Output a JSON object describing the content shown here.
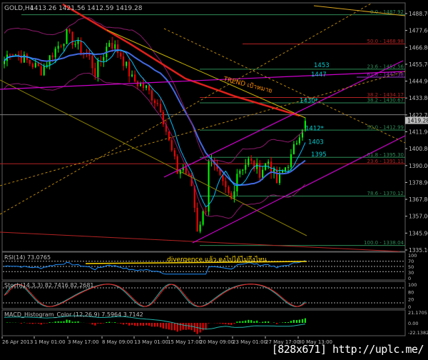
{
  "header": {
    "symbol": "GOLD,H4",
    "ohlc": "1413.26 1421.56 1412.59 1419.28"
  },
  "price_axis": {
    "ticks": [
      "1488.70",
      "1477.60",
      "1466.80",
      "1455.70",
      "1444.90",
      "1433.80",
      "1422.70",
      "1411.90",
      "1400.80",
      "1390.00",
      "1378.90",
      "1367.80",
      "1357.00",
      "1345.90",
      "1335.10"
    ],
    "current_price": "1419.28"
  },
  "fib_levels": [
    {
      "label": "0.0 - 1487.92",
      "price": 1487.92,
      "color": "#2e8b57"
    },
    {
      "label": "50.0 - 1468.98",
      "price": 1468.98,
      "color": "#b22222"
    },
    {
      "label": "23.6 - 1452.56",
      "price": 1452.56,
      "color": "#2e8b57"
    },
    {
      "label": "61.8 - 1447.38",
      "price": 1447.38,
      "color": "#9932cc"
    },
    {
      "label": "38.2 - 1434.17",
      "price": 1434.17,
      "color": "#b22222"
    },
    {
      "label": "38.2 - 1430.67",
      "price": 1430.67,
      "color": "#2e8b57"
    },
    {
      "label": "50.0 - 1412.99",
      "price": 1412.99,
      "color": "#2e8b57"
    },
    {
      "label": "61.8 - 1395.30",
      "price": 1395.3,
      "color": "#2e8b57"
    },
    {
      "label": "23.6 - 1391.11",
      "price": 1391.11,
      "color": "#b22222"
    },
    {
      "label": "78.6 - 1370.12",
      "price": 1370.12,
      "color": "#2e8b57"
    },
    {
      "label": "100.0 - 1338.04",
      "price": 1338.04,
      "color": "#2e8b57"
    }
  ],
  "annotations": {
    "levels": [
      {
        "text": "1453",
        "price": 1453
      },
      {
        "text": "1447",
        "price": 1447
      },
      {
        "text": "1430*",
        "price": 1430
      },
      {
        "text": "1412*",
        "price": 1412
      },
      {
        "text": "1403",
        "price": 1403
      },
      {
        "text": "1395",
        "price": 1395
      }
    ],
    "trend_label": "TREND เป้าหมาย",
    "divergence_note": "divergence แล้ว คงไปได้ไม่ถึงไหน"
  },
  "indicators": {
    "rsi": {
      "label": "RSI(14) 73.0765",
      "ticks": [
        "100",
        "70",
        "50",
        "30",
        "0"
      ]
    },
    "stoch": {
      "label": "Stoch(14,3,3) 82.7416 82.2681",
      "ticks": [
        "100",
        "80",
        "20",
        "0"
      ]
    },
    "macd": {
      "label": "MACD_Histogram_Color (12,26,9)  7.5964 3.7142",
      "ticks": [
        "21.1705",
        "0.00",
        "-22.1382"
      ]
    }
  },
  "time_axis": [
    "26 Apr 2013",
    "1 May 01:00",
    "3 May 17:00",
    "8 May 09:00",
    "13 May 01:00",
    "15 May 17:00",
    "20 May 09:00",
    "23 May 01:00",
    "27 May 17:00",
    "30 May 13:00"
  ],
  "chart_data": {
    "type": "candlestick",
    "timeframe": "H4",
    "ylim": [
      1335.1,
      1488.7
    ],
    "approx_closes": [
      [
        0,
        1458
      ],
      [
        2,
        1465
      ],
      [
        13,
        1452
      ],
      [
        17,
        1463
      ],
      [
        22,
        1475
      ],
      [
        30,
        1460
      ],
      [
        32,
        1450
      ],
      [
        37,
        1471
      ],
      [
        41,
        1462
      ],
      [
        45,
        1446
      ],
      [
        50,
        1440
      ],
      [
        55,
        1428
      ],
      [
        58,
        1405
      ],
      [
        61,
        1386
      ],
      [
        63,
        1389
      ],
      [
        66,
        1377
      ],
      [
        68,
        1349
      ],
      [
        71,
        1363
      ],
      [
        72,
        1395
      ],
      [
        75,
        1384
      ],
      [
        77,
        1377
      ],
      [
        80,
        1368
      ],
      [
        82,
        1386
      ],
      [
        86,
        1393
      ],
      [
        90,
        1386
      ],
      [
        93,
        1393
      ],
      [
        96,
        1379
      ],
      [
        98,
        1386
      ],
      [
        101,
        1395
      ],
      [
        104,
        1412
      ],
      [
        106,
        1419
      ]
    ]
  },
  "colors": {
    "bull": "#00ff00",
    "bear": "#ff0000",
    "background": "#000000",
    "axis": "#c0c0c0"
  },
  "watermark": "[828x671] http://uplc.me/"
}
